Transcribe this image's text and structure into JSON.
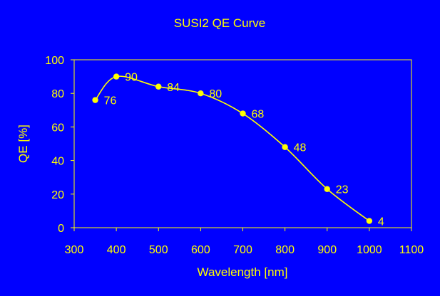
{
  "colors": {
    "background": "#0000FF",
    "foreground": "#FFFF00"
  },
  "chart_data": {
    "type": "line",
    "title": "SUSI2 QE Curve",
    "xlabel": "Wavelength [nm]",
    "ylabel": "QE [%]",
    "xlim": [
      300,
      1100
    ],
    "ylim": [
      0,
      100
    ],
    "x_ticks": [
      300,
      400,
      500,
      600,
      700,
      800,
      900,
      1000,
      1100
    ],
    "y_ticks": [
      0,
      20,
      40,
      60,
      80,
      100
    ],
    "grid": false,
    "legend": "none",
    "smooth": true,
    "series": [
      {
        "x": [
          350,
          400,
          500,
          600,
          700,
          800,
          900,
          1000
        ],
        "y": [
          76,
          90,
          84,
          80,
          68,
          48,
          23,
          4
        ],
        "labels": [
          "76",
          "90",
          "84",
          "80",
          "68",
          "48",
          "23",
          "4"
        ]
      }
    ]
  }
}
